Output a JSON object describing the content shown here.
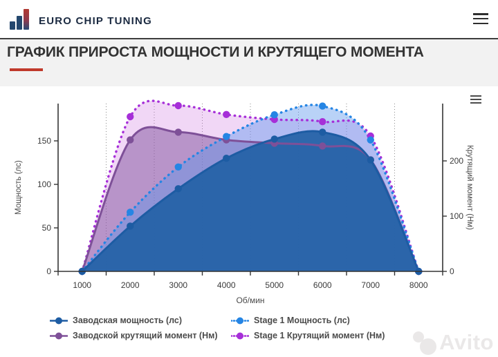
{
  "header": {
    "brand": "EURO CHIP TUNING"
  },
  "page": {
    "title": "ГРАФИК ПРИРОСТА МОЩНОСТИ И КРУТЯЩЕГО МОМЕНТА"
  },
  "watermark": "Avito",
  "colors": {
    "accent_red": "#c0392b",
    "stock_power": "#1d5ca3",
    "stage1_power": "#2585e4",
    "stock_torque": "#7e5098",
    "stage1_torque": "#a62fd8",
    "axis": "#333333",
    "grid": "#8a8a8a"
  },
  "chart_data": {
    "type": "line",
    "x": [
      1000,
      2000,
      3000,
      4000,
      5000,
      6000,
      7000,
      8000
    ],
    "xlabel": "Об/мин",
    "ylabel_left": "Мощность (лс)",
    "ylabel_right": "Крутящий момент (Нм)",
    "left_axis_ticks": [
      0,
      50,
      100,
      150
    ],
    "right_axis_ticks": [
      0,
      100,
      200
    ],
    "left_ylim": [
      0,
      193
    ],
    "right_ylim": [
      0,
      306
    ],
    "grid": "vertical-dotted-between-categories",
    "legend_position": "bottom",
    "series": [
      {
        "name": "Заводская мощность (лс)",
        "axis": "left",
        "dash": "solid",
        "color": "#1d5ca3",
        "fill": "rgba(35,98,167,0.93)",
        "values": [
          0,
          52,
          95,
          130,
          152,
          160,
          128,
          0
        ]
      },
      {
        "name": "Stage 1 Мощность (лс)",
        "axis": "left",
        "dash": "dotted",
        "color": "#2585e4",
        "fill": "rgba(88,148,235,0.42)",
        "values": [
          0,
          68,
          120,
          155,
          180,
          190,
          151,
          0
        ]
      },
      {
        "name": "Заводской крутящий момент (Нм)",
        "axis": "right",
        "dash": "solid",
        "color": "#7e5098",
        "fill": "rgba(128,82,155,0.50)",
        "values": [
          0,
          238,
          252,
          238,
          232,
          227,
          202,
          0
        ]
      },
      {
        "name": "Stage 1 Крутящий момент (Нм)",
        "axis": "right",
        "dash": "dotted",
        "color": "#a62fd8",
        "fill": "rgba(201,100,222,0.26)",
        "values": [
          0,
          280,
          300,
          284,
          275,
          271,
          245,
          0
        ]
      }
    ]
  }
}
